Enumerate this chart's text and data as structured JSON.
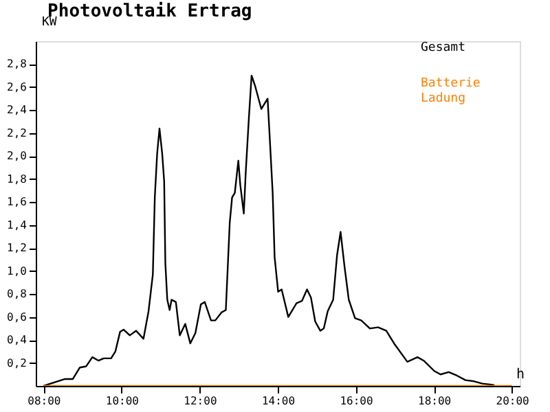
{
  "chart_data": {
    "type": "line",
    "title": "Photovoltaik Ertrag",
    "xlabel": "h",
    "ylabel": "KW",
    "xlim": [
      7.8,
      20.2
    ],
    "ylim": [
      0,
      3.0
    ],
    "xticks": [
      {
        "value": 8,
        "label": "08:00"
      },
      {
        "value": 10,
        "label": "10:00"
      },
      {
        "value": 12,
        "label": "12:00"
      },
      {
        "value": 14,
        "label": "14:00"
      },
      {
        "value": 16,
        "label": "16:00"
      },
      {
        "value": 18,
        "label": "18:00"
      },
      {
        "value": 20,
        "label": "20:00"
      }
    ],
    "yticks": [
      {
        "value": 0.2,
        "label": "0,2"
      },
      {
        "value": 0.4,
        "label": "0,4"
      },
      {
        "value": 0.6,
        "label": "0,6"
      },
      {
        "value": 0.8,
        "label": "0,8"
      },
      {
        "value": 1.0,
        "label": "1,0"
      },
      {
        "value": 1.2,
        "label": "1,2"
      },
      {
        "value": 1.4,
        "label": "1,4"
      },
      {
        "value": 1.6,
        "label": "1,6"
      },
      {
        "value": 1.8,
        "label": "1,8"
      },
      {
        "value": 2.0,
        "label": "2,0"
      },
      {
        "value": 2.2,
        "label": "2,2"
      },
      {
        "value": 2.4,
        "label": "2,4"
      },
      {
        "value": 2.6,
        "label": "2,6"
      },
      {
        "value": 2.8,
        "label": "2,8"
      }
    ],
    "grid": false,
    "legend": "top right",
    "marker": "none",
    "line_style": "solid",
    "series": [
      {
        "name": "Gesamt",
        "color": "#000000",
        "x": [
          8.0,
          8.55,
          8.75,
          8.93,
          9.09,
          9.25,
          9.41,
          9.54,
          9.73,
          9.84,
          9.96,
          10.05,
          10.21,
          10.37,
          10.56,
          10.69,
          10.8,
          10.85,
          10.91,
          10.97,
          11.04,
          11.09,
          11.12,
          11.17,
          11.23,
          11.28,
          11.39,
          11.49,
          11.63,
          11.76,
          11.89,
          12.03,
          12.13,
          12.29,
          12.4,
          12.56,
          12.67,
          12.77,
          12.83,
          12.9,
          12.99,
          13.04,
          13.13,
          13.18,
          13.26,
          13.33,
          13.42,
          13.58,
          13.74,
          13.79,
          13.87,
          13.92,
          14.01,
          14.1,
          14.27,
          14.48,
          14.62,
          14.75,
          14.85,
          14.96,
          15.09,
          15.18,
          15.28,
          15.42,
          15.52,
          15.61,
          15.71,
          15.82,
          15.98,
          16.14,
          16.36,
          16.57,
          16.78,
          17.0,
          17.32,
          17.58,
          17.74,
          18.01,
          18.17,
          18.38,
          18.59,
          18.81,
          19.03,
          19.24,
          19.51,
          19.56
        ],
        "values": [
          0,
          0.06,
          0.06,
          0.16,
          0.17,
          0.25,
          0.22,
          0.24,
          0.24,
          0.3,
          0.47,
          0.49,
          0.44,
          0.48,
          0.41,
          0.65,
          0.97,
          1.64,
          2.02,
          2.24,
          2.02,
          1.78,
          1.07,
          0.75,
          0.66,
          0.75,
          0.73,
          0.44,
          0.54,
          0.37,
          0.46,
          0.71,
          0.73,
          0.57,
          0.57,
          0.64,
          0.66,
          1.42,
          1.64,
          1.68,
          1.96,
          1.75,
          1.5,
          1.86,
          2.33,
          2.7,
          2.61,
          2.41,
          2.5,
          2.19,
          1.68,
          1.12,
          0.82,
          0.84,
          0.6,
          0.72,
          0.74,
          0.84,
          0.77,
          0.56,
          0.48,
          0.5,
          0.65,
          0.75,
          1.14,
          1.34,
          1.04,
          0.75,
          0.59,
          0.57,
          0.5,
          0.51,
          0.48,
          0.36,
          0.21,
          0.25,
          0.22,
          0.13,
          0.1,
          0.12,
          0.09,
          0.05,
          0.04,
          0.02,
          0.01,
          0
        ]
      },
      {
        "name": "Batterie Ladung",
        "color": "#ff8000",
        "x": [
          8,
          20
        ],
        "values": [
          0,
          0
        ]
      }
    ]
  }
}
